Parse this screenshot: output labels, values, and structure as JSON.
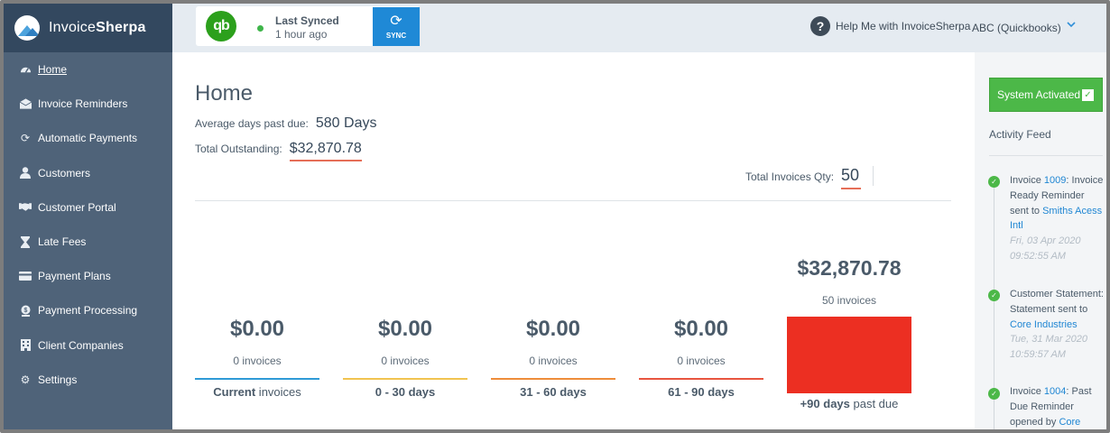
{
  "brand": {
    "name_light": "Invoice",
    "name_bold": "Sherpa"
  },
  "sidebar": {
    "items": [
      {
        "label": "Home",
        "icon": "dashboard-icon"
      },
      {
        "label": "Invoice Reminders",
        "icon": "envelope-icon"
      },
      {
        "label": "Automatic Payments",
        "icon": "refresh-icon"
      },
      {
        "label": "Customers",
        "icon": "user-icon"
      },
      {
        "label": "Customer Portal",
        "icon": "handshake-icon"
      },
      {
        "label": "Late Fees",
        "icon": "hourglass-icon"
      },
      {
        "label": "Payment Plans",
        "icon": "credit-card-icon"
      },
      {
        "label": "Payment Processing",
        "icon": "dollar-icon"
      },
      {
        "label": "Client Companies",
        "icon": "building-icon"
      },
      {
        "label": "Settings",
        "icon": "gear-icon"
      }
    ]
  },
  "topbar": {
    "qb_logo": "qb",
    "sync_status_label": "Last Synced",
    "sync_status_time": "1 hour ago",
    "sync_button": "SYNC",
    "help_label": "Help Me with InvoiceSherpa",
    "company": "ABC (Quickbooks)"
  },
  "main": {
    "title": "Home",
    "avg_days_label": "Average days past due:",
    "avg_days_value": "580 Days",
    "total_outstanding_label": "Total Outstanding:",
    "total_outstanding_value": "$32,870.78",
    "total_invoices_label": "Total Invoices Qty:",
    "total_invoices_value": "50",
    "buckets": [
      {
        "amount": "$0.00",
        "count": "0 invoices",
        "label_bold": "Current",
        "label_rest": " invoices",
        "color": "#2f9ad6"
      },
      {
        "amount": "$0.00",
        "count": "0 invoices",
        "label_bold": "0 - 30 days",
        "label_rest": "",
        "color": "#f1c350"
      },
      {
        "amount": "$0.00",
        "count": "0 invoices",
        "label_bold": "31 - 60 days",
        "label_rest": "",
        "color": "#ee8d3a"
      },
      {
        "amount": "$0.00",
        "count": "0 invoices",
        "label_bold": "61 - 90 days",
        "label_rest": "",
        "color": "#e8553f"
      }
    ],
    "overdue": {
      "amount": "$32,870.78",
      "count": "50 invoices",
      "label_bold": "+90 days",
      "label_rest": " past due",
      "color": "#ec2f22"
    }
  },
  "right": {
    "activated_label": "System Activated",
    "feed_title": "Activity Feed",
    "entries": [
      {
        "pre": "Invoice ",
        "link1": "1009",
        "mid": ": Invoice Ready Reminder sent to ",
        "link2": "Smiths Acess Intl",
        "post": "",
        "when": "Fri, 03 Apr 2020 09:52:55 AM"
      },
      {
        "pre": "Customer Statement: Statement sent to ",
        "link1": "Core Industries",
        "mid": "",
        "link2": "",
        "post": "",
        "when": "Tue, 31 Mar 2020 10:59:57 AM"
      },
      {
        "pre": "Invoice ",
        "link1": "1004",
        "mid": ": Past Due Reminder opened by ",
        "link2": "Core",
        "post": "",
        "when": ""
      }
    ]
  }
}
